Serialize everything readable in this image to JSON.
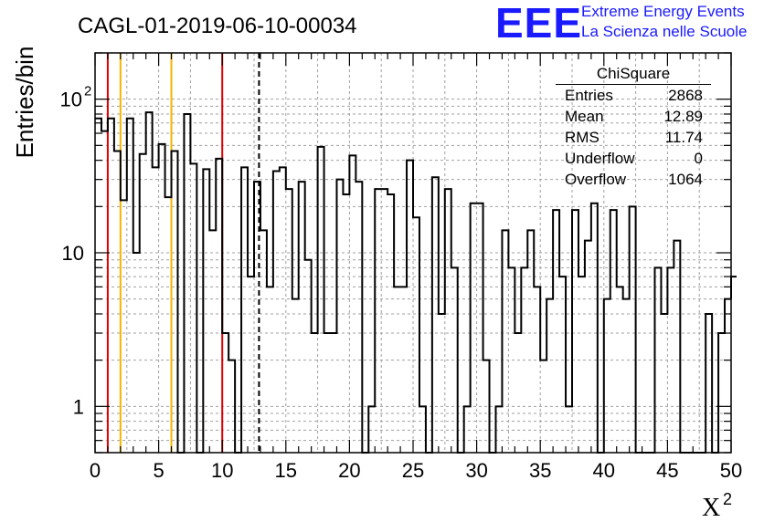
{
  "chart_data": {
    "type": "bar",
    "title": "CAGL-01-2019-06-10-00034",
    "xlabel": "X",
    "xlabel_superscript": "2",
    "ylabel": "Entries/bin",
    "xlim": [
      0,
      50
    ],
    "ylim": [
      0.5,
      200
    ],
    "y_scale": "log",
    "grid": true,
    "bin_width": 0.5,
    "x_ticks": [
      "0",
      "5",
      "10",
      "15",
      "20",
      "25",
      "30",
      "35",
      "40",
      "45",
      "50"
    ],
    "y_ticks": [
      {
        "value": 1,
        "base": "1",
        "exp": ""
      },
      {
        "value": 10,
        "base": "10",
        "exp": ""
      },
      {
        "value": 100,
        "base": "10",
        "exp": "2"
      }
    ],
    "values": [
      75,
      62,
      75,
      46,
      22,
      75,
      10,
      44,
      82,
      36,
      51,
      23,
      46,
      0,
      80,
      38,
      0,
      35,
      14,
      41,
      3,
      2,
      0,
      36,
      7,
      29,
      14,
      6,
      34,
      36,
      26,
      5,
      29,
      9,
      3,
      49,
      3,
      3,
      30,
      24,
      43,
      29,
      0,
      1,
      26,
      26,
      24,
      6,
      6,
      40,
      17,
      1,
      0,
      31,
      4,
      26,
      8,
      0,
      1,
      21,
      21,
      2,
      0,
      1,
      14,
      8,
      3,
      8,
      14,
      6,
      2,
      5,
      19,
      7,
      1,
      19,
      7,
      12,
      21,
      0,
      5,
      19,
      6,
      5,
      20,
      0,
      0,
      0,
      8,
      4,
      8,
      12,
      0,
      0,
      0,
      0,
      4,
      0,
      3,
      5
    ],
    "partial_tail_bar": 7,
    "vertical_lines": [
      {
        "x": 1,
        "color": "#e00000",
        "style": "solid"
      },
      {
        "x": 10,
        "color": "#e00000",
        "style": "solid"
      },
      {
        "x": 2,
        "color": "#f4b400",
        "style": "solid"
      },
      {
        "x": 6,
        "color": "#f4b400",
        "style": "solid"
      },
      {
        "x": 12.89,
        "color": "#000000",
        "style": "dashed"
      }
    ]
  },
  "stats_box": {
    "title": "ChiSquare",
    "rows": [
      {
        "label": "Entries",
        "value": "2868"
      },
      {
        "label": "Mean",
        "value": "12.89"
      },
      {
        "label": "RMS",
        "value": "11.74"
      },
      {
        "label": "Underflow",
        "value": "0"
      },
      {
        "label": "Overflow",
        "value": "1064"
      }
    ]
  },
  "logo": {
    "text": "EEE",
    "line1": "Extreme Energy Events",
    "line2": "La Scienza nelle Scuole",
    "color": "#1a1aff"
  },
  "colors": {
    "red_line": "#e00000",
    "yellow_line": "#f4b400",
    "hist": "#000000",
    "grid": "#a0a0a0"
  }
}
